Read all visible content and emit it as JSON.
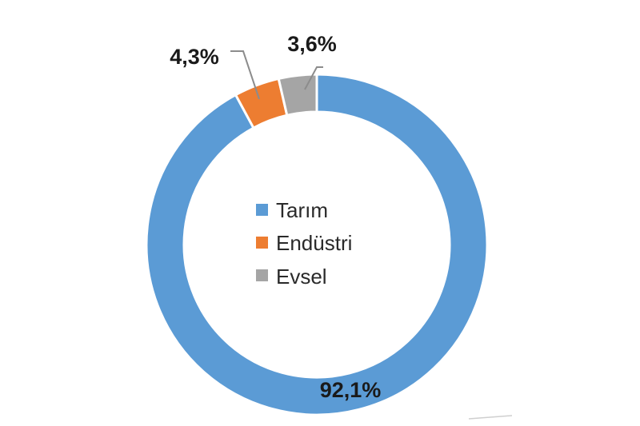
{
  "chart_data": {
    "type": "pie",
    "variant": "donut",
    "categories": [
      "Tarım",
      "Endüstri",
      "Evsel"
    ],
    "values": [
      92.1,
      4.3,
      3.6
    ],
    "data_labels": [
      "92,1%",
      "4,3%",
      "3,6%"
    ],
    "colors": [
      "#5b9bd5",
      "#ed7d31",
      "#a5a5a5"
    ],
    "legend": {
      "placement": "center",
      "items": [
        {
          "label": "Tarım",
          "color": "#5b9bd5"
        },
        {
          "label": "Endüstri",
          "color": "#ed7d31"
        },
        {
          "label": "Evsel",
          "color": "#a5a5a5"
        }
      ]
    }
  }
}
